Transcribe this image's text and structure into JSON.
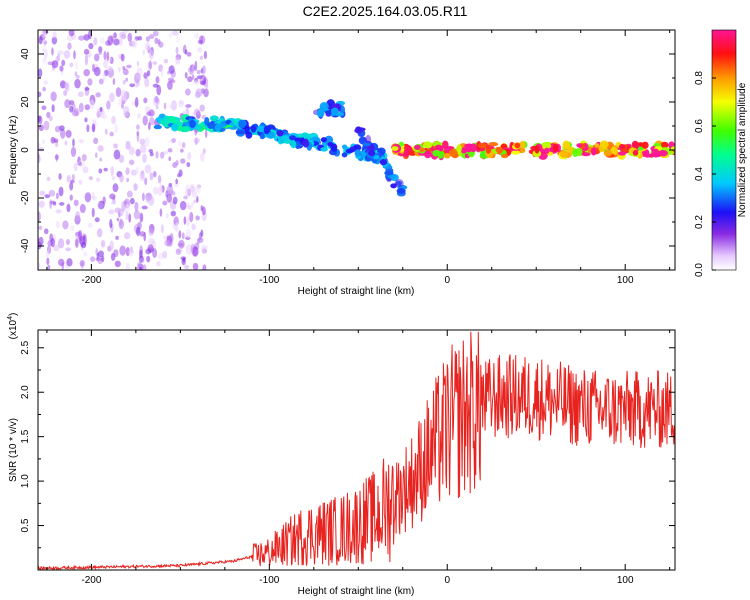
{
  "title": "C2E2.2025.164.03.05.R11",
  "colors": {
    "snr_line": "#e8231f",
    "spectrogram_background": "#ffffff",
    "axis": "#000000"
  },
  "chart_data": [
    {
      "type": "heatmap",
      "xlabel": "Height of straight line (km)",
      "ylabel": "Frequency (Hz)",
      "xlim": [
        -230,
        128
      ],
      "ylim": [
        -50,
        50
      ],
      "x_ticks": [
        "-200",
        "-100",
        "0",
        "100"
      ],
      "y_ticks": [
        "-40",
        "-20",
        "0",
        "20",
        "40"
      ],
      "colorbar": {
        "label": "Normalized spectral amplitude",
        "range": [
          0,
          1
        ],
        "ticks": [
          "0.0",
          "0.2",
          "0.4",
          "0.6",
          "0.8"
        ],
        "colormap": "rainbow (white → violet → blue → cyan → green → yellow → orange → red → magenta)"
      },
      "features": [
        {
          "x_range": [
            -230,
            -135
          ],
          "freq_range": [
            -50,
            50
          ],
          "amplitude": 0.1
        },
        {
          "x_range": [
            -165,
            -120
          ],
          "freq_center": 11,
          "amplitude": 0.45
        },
        {
          "x_range": [
            -120,
            -35
          ],
          "freq_start": 10,
          "freq_end": -3,
          "amplitude": 0.35
        },
        {
          "x_range": [
            -50,
            -25
          ],
          "freq_start": 8,
          "freq_end": -18,
          "amplitude": 0.3
        },
        {
          "x_range": [
            -75,
            -58
          ],
          "freq_center": 17,
          "amplitude": 0.3
        },
        {
          "x_range": [
            -30,
            128
          ],
          "freq_center": 0,
          "amplitude": 0.95
        }
      ]
    },
    {
      "type": "line",
      "xlabel": "Height of straight line (km)",
      "ylabel": "SNR (10 * v/v)",
      "y_multiplier": "(x10^4)",
      "xlim": [
        -230,
        128
      ],
      "ylim": [
        0,
        27000
      ],
      "x_ticks": [
        "-200",
        "-100",
        "0",
        "100"
      ],
      "y_ticks": [
        "0.5",
        "1.0",
        "1.5",
        "2.0",
        "2.5"
      ],
      "series": [
        {
          "x": [
            -230,
            -200,
            -150,
            -120,
            -100,
            -80,
            -60,
            -40,
            -30,
            -20,
            -10,
            0,
            10,
            20,
            30,
            50,
            70,
            90,
            110,
            128
          ],
          "y": [
            200,
            300,
            500,
            1000,
            2000,
            4000,
            4500,
            6000,
            8000,
            10000,
            13000,
            16000,
            17500,
            19000,
            19500,
            19500,
            18500,
            18000,
            18000,
            18000
          ]
        }
      ]
    }
  ]
}
